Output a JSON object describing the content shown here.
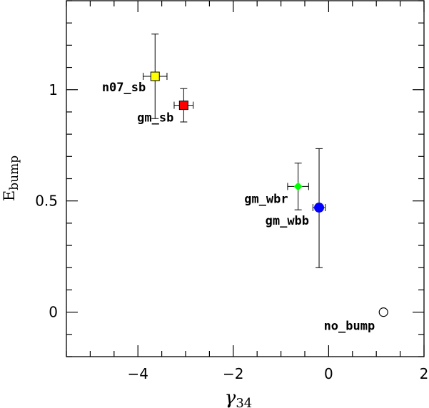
{
  "chart_data": {
    "type": "scatter",
    "xlabel": "γ",
    "xlabel_sub": "34",
    "ylabel": "E",
    "ylabel_sub": "bump",
    "xlim": [
      -5.5,
      2.0
    ],
    "ylim": [
      -0.2,
      1.4
    ],
    "x_ticks": [
      -4,
      -2,
      0,
      2
    ],
    "x_tick_labels": [
      "−4",
      "−2",
      "0",
      "2"
    ],
    "y_ticks": [
      0,
      0.5,
      1
    ],
    "y_tick_labels": [
      "0",
      "0.5",
      "1"
    ],
    "x_minor_step": 0.5,
    "y_minor_step": 0.1,
    "grid": false,
    "points": [
      {
        "label": "n07_sb",
        "x": -3.64,
        "y": 1.06,
        "xerr": [
          0.25,
          0.25
        ],
        "yerr": [
          0.19,
          0.19
        ],
        "marker": "square",
        "color": "#ffff00",
        "label_pos": "left"
      },
      {
        "label": "gm_sb",
        "x": -3.04,
        "y": 0.93,
        "xerr": [
          0.2,
          0.2
        ],
        "yerr": [
          0.075,
          0.075
        ],
        "marker": "square",
        "color": "#ff0000",
        "label_pos": "below-left"
      },
      {
        "label": "gm_wbr",
        "x": -0.64,
        "y": 0.565,
        "xerr": [
          0.22,
          0.22
        ],
        "yerr": [
          0.105,
          0.105
        ],
        "marker": "diamond",
        "color": "#00ff00",
        "label_pos": "left"
      },
      {
        "label": "gm_wbb",
        "x": -0.2,
        "y": 0.47,
        "xerr": [
          0.13,
          0.13
        ],
        "yerr": [
          0.27,
          0.265
        ],
        "marker": "circle",
        "color": "#0000ff",
        "label_pos": "below-left"
      },
      {
        "label": "no_bump",
        "x": 1.15,
        "y": 0.0,
        "xerr": [
          0,
          0
        ],
        "yerr": [
          0,
          0
        ],
        "marker": "circle-open",
        "color": "#ffffff",
        "label_pos": "below-left"
      }
    ]
  }
}
